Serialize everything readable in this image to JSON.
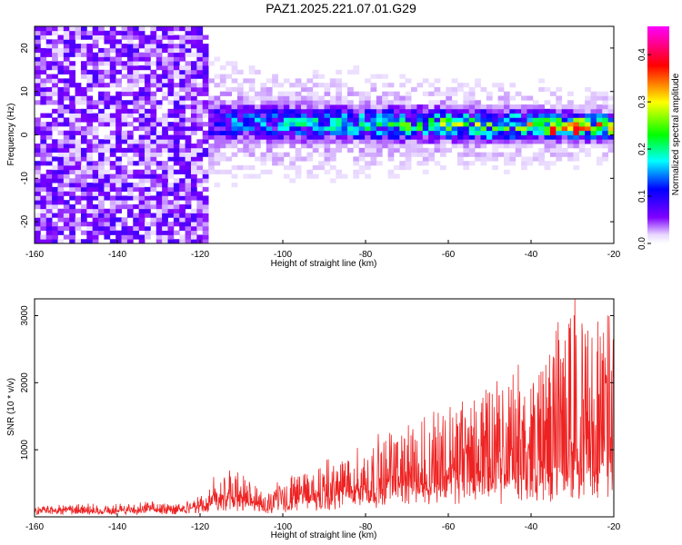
{
  "title": "PAZ1.2025.221.07.01.G29",
  "chart_data": [
    {
      "type": "heatmap",
      "xlabel": "Height of straight line (km)",
      "ylabel": "Frequency (Hz)",
      "xlim": [
        -160,
        -20
      ],
      "ylim": [
        -25,
        25
      ],
      "x_ticks": [
        -160,
        -140,
        -120,
        -100,
        -80,
        -60,
        -40,
        -20
      ],
      "y_ticks": [
        -20,
        -10,
        0,
        10,
        20
      ],
      "colorbar": {
        "label": "Normalized spectral amplitude",
        "range": [
          0,
          0.46
        ],
        "ticks": [
          "0.0",
          "0.1",
          "0.2",
          "0.3",
          "0.4"
        ],
        "colormap": [
          "#ffffff",
          "#7f00ff",
          "#0000ff",
          "#00ffff",
          "#00ff00",
          "#ffff00",
          "#ff0000",
          "#ff00ff"
        ]
      },
      "description_bands": [
        {
          "x_range": [
            -160,
            -118
          ],
          "freq_center": 0,
          "freq_halfwidth": 25,
          "amplitude": 0.05
        },
        {
          "x_range": [
            -118,
            -20
          ],
          "freq_center_start": 3,
          "freq_center_end": 2,
          "freq_halfwidth_start": 4,
          "freq_halfwidth_end": 2.5,
          "amplitude_start": 0.12,
          "amplitude_end": 0.3
        }
      ],
      "peaks": [
        {
          "x": -35,
          "freq": 1,
          "amplitude": 0.46
        },
        {
          "x": -29,
          "freq": 1,
          "amplitude": 0.45
        },
        {
          "x": -50,
          "freq": 0,
          "amplitude": 0.2
        },
        {
          "x": -23,
          "freq": 2,
          "amplitude": 0.25
        }
      ]
    },
    {
      "type": "line",
      "xlabel": "Height of straight line (km)",
      "ylabel": "SNR (10 * v/v)",
      "xlim": [
        -160,
        -20
      ],
      "ylim": [
        0,
        3250
      ],
      "x_ticks": [
        -160,
        -140,
        -120,
        -100,
        -80,
        -60,
        -40,
        -20
      ],
      "y_ticks": [
        1000,
        2000,
        3000
      ],
      "color": "#ee2222",
      "envelope": [
        {
          "x": -160,
          "base": 80,
          "peak": 180
        },
        {
          "x": -140,
          "base": 80,
          "peak": 200
        },
        {
          "x": -121,
          "base": 100,
          "peak": 240
        },
        {
          "x": -116,
          "base": 200,
          "peak": 650
        },
        {
          "x": -112,
          "base": 250,
          "peak": 700
        },
        {
          "x": -108,
          "base": 200,
          "peak": 550
        },
        {
          "x": -104,
          "base": 100,
          "peak": 400
        },
        {
          "x": -100,
          "base": 150,
          "peak": 600
        },
        {
          "x": -90,
          "base": 250,
          "peak": 800
        },
        {
          "x": -80,
          "base": 350,
          "peak": 1100
        },
        {
          "x": -70,
          "base": 400,
          "peak": 1400
        },
        {
          "x": -60,
          "base": 450,
          "peak": 1800
        },
        {
          "x": -50,
          "base": 500,
          "peak": 2000
        },
        {
          "x": -40,
          "base": 500,
          "peak": 2300
        },
        {
          "x": -30,
          "base": 600,
          "peak": 3200
        },
        {
          "x": -24,
          "base": 600,
          "peak": 3100
        },
        {
          "x": -20,
          "base": 700,
          "peak": 3200
        }
      ]
    }
  ]
}
